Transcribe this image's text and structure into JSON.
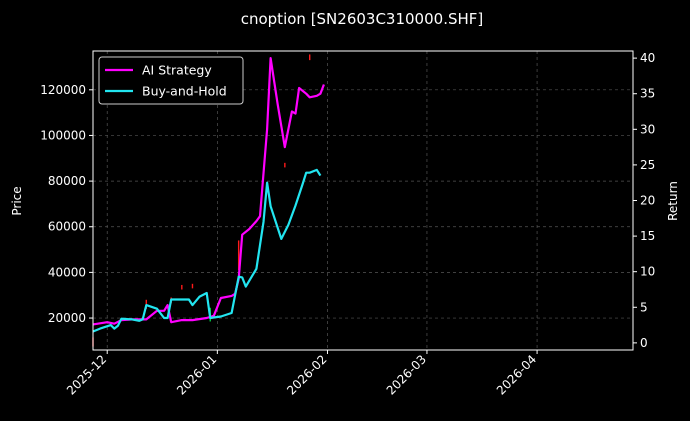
{
  "chart_data": {
    "type": "line",
    "title": "cnoption [SN2603C310000.SHF]",
    "ylabel": "Price",
    "ylabel_right": "Return",
    "x_ticks": [
      "2025-12",
      "2026-01",
      "2026-02",
      "2026-03",
      "2026-04"
    ],
    "xlim": [
      "2025-11-27",
      "2026-04-28"
    ],
    "y_ticks": [
      20000,
      40000,
      60000,
      80000,
      100000,
      120000
    ],
    "y_tick_labels": [
      "20000",
      "40000",
      "60000",
      "80000",
      "100000",
      "120000"
    ],
    "ylim": [
      6000,
      137000
    ],
    "y2_ticks": [
      0,
      5,
      10,
      15,
      20,
      25,
      30,
      35,
      40
    ],
    "y2_tick_labels": [
      "0",
      "5",
      "10",
      "15",
      "20",
      "25",
      "30",
      "35",
      "40"
    ],
    "y2lim": [
      -1,
      41
    ],
    "grid": true,
    "legend_position": "top-left",
    "candles": {
      "up_color": "#00cc44",
      "down_color": "#ff1a1a",
      "marks": [
        {
          "date": "2025-11-27",
          "low": 7500,
          "high": 11500,
          "dir": "down"
        },
        {
          "date": "2025-12-12",
          "low": 24000,
          "high": 28000,
          "dir": "down"
        },
        {
          "date": "2025-12-19",
          "low": 26500,
          "high": 29000,
          "dir": "down"
        },
        {
          "date": "2025-12-22",
          "low": 32500,
          "high": 34500,
          "dir": "down"
        },
        {
          "date": "2025-12-25",
          "low": 33000,
          "high": 35000,
          "dir": "down"
        },
        {
          "date": "2025-12-30",
          "low": 18500,
          "high": 24500,
          "dir": "up"
        },
        {
          "date": "2026-01-07",
          "low": 41000,
          "high": 54000,
          "dir": "down"
        },
        {
          "date": "2026-01-20",
          "low": 86000,
          "high": 88000,
          "dir": "down"
        },
        {
          "date": "2026-01-27",
          "low": 133000,
          "high": 135500,
          "dir": "down"
        }
      ]
    },
    "series": [
      {
        "name": "AI Strategy",
        "color": "#ff00ff",
        "points": [
          [
            "2025-11-27",
            2.6
          ],
          [
            "2025-12-01",
            2.9
          ],
          [
            "2025-12-03",
            2.7
          ],
          [
            "2025-12-05",
            3.2
          ],
          [
            "2025-12-08",
            3.3
          ],
          [
            "2025-12-10",
            3.3
          ],
          [
            "2025-12-12",
            3.3
          ],
          [
            "2025-12-15",
            4.5
          ],
          [
            "2025-12-17",
            4.5
          ],
          [
            "2025-12-18",
            5.3
          ],
          [
            "2025-12-19",
            2.9
          ],
          [
            "2025-12-22",
            3.2
          ],
          [
            "2025-12-25",
            3.2
          ],
          [
            "2025-12-29",
            3.5
          ],
          [
            "2025-12-31",
            3.8
          ],
          [
            "2026-01-02",
            6.3
          ],
          [
            "2026-01-05",
            6.6
          ],
          [
            "2026-01-06",
            6.9
          ],
          [
            "2026-01-07",
            9.0
          ],
          [
            "2026-01-08",
            15.2
          ],
          [
            "2026-01-10",
            16.0
          ],
          [
            "2026-01-12",
            17.1
          ],
          [
            "2026-01-13",
            17.8
          ],
          [
            "2026-01-15",
            30.0
          ],
          [
            "2026-01-16",
            40.0
          ],
          [
            "2026-01-18",
            33.5
          ],
          [
            "2026-01-20",
            27.5
          ],
          [
            "2026-01-22",
            32.5
          ],
          [
            "2026-01-23",
            32.2
          ],
          [
            "2026-01-24",
            35.8
          ],
          [
            "2026-01-26",
            35.0
          ],
          [
            "2026-01-27",
            34.5
          ],
          [
            "2026-01-29",
            34.7
          ],
          [
            "2026-01-30",
            35.0
          ],
          [
            "2026-01-31",
            36.3
          ]
        ]
      },
      {
        "name": "Buy-and-Hold",
        "color": "#22e5f0",
        "points": [
          [
            "2025-11-27",
            1.6
          ],
          [
            "2025-11-29",
            2.0
          ],
          [
            "2025-12-02",
            2.5
          ],
          [
            "2025-12-03",
            2.0
          ],
          [
            "2025-12-04",
            2.4
          ],
          [
            "2025-12-05",
            3.4
          ],
          [
            "2025-12-08",
            3.3
          ],
          [
            "2025-12-10",
            3.1
          ],
          [
            "2025-12-11",
            3.3
          ],
          [
            "2025-12-12",
            5.3
          ],
          [
            "2025-12-15",
            4.8
          ],
          [
            "2025-12-17",
            3.5
          ],
          [
            "2025-12-18",
            3.5
          ],
          [
            "2025-12-19",
            6.1
          ],
          [
            "2025-12-22",
            6.1
          ],
          [
            "2025-12-24",
            6.1
          ],
          [
            "2025-12-25",
            5.3
          ],
          [
            "2025-12-27",
            6.5
          ],
          [
            "2025-12-29",
            7.0
          ],
          [
            "2025-12-30",
            3.5
          ],
          [
            "2026-01-02",
            3.7
          ],
          [
            "2026-01-05",
            4.2
          ],
          [
            "2026-01-07",
            9.3
          ],
          [
            "2026-01-08",
            9.2
          ],
          [
            "2026-01-09",
            7.9
          ],
          [
            "2026-01-12",
            10.4
          ],
          [
            "2026-01-14",
            17.0
          ],
          [
            "2026-01-15",
            22.5
          ],
          [
            "2026-01-16",
            19.2
          ],
          [
            "2026-01-19",
            14.6
          ],
          [
            "2026-01-21",
            16.6
          ],
          [
            "2026-01-23",
            19.3
          ],
          [
            "2026-01-25",
            22.3
          ],
          [
            "2026-01-26",
            23.9
          ],
          [
            "2026-01-27",
            23.9
          ],
          [
            "2026-01-29",
            24.3
          ],
          [
            "2026-01-30",
            23.5
          ]
        ]
      }
    ]
  }
}
